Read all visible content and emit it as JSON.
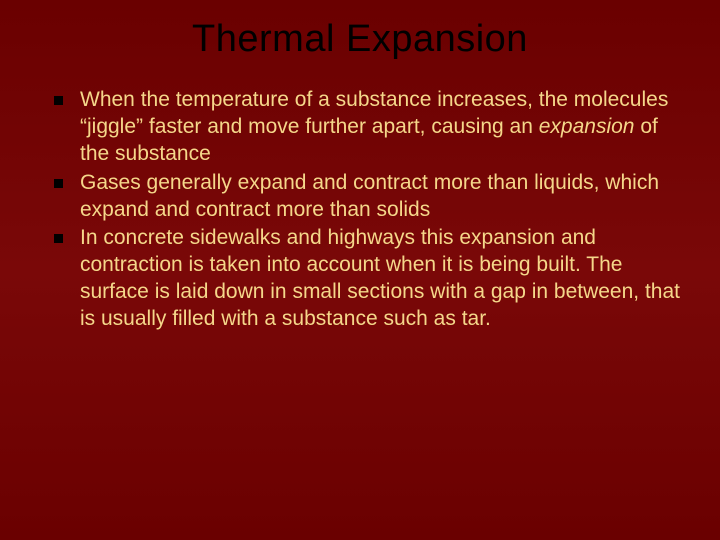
{
  "slide": {
    "background_gradient": [
      "#6a0000",
      "#7a0808",
      "#6a0000"
    ],
    "title": {
      "text": "Thermal Expansion",
      "color": "#000000",
      "fontsize": 38,
      "font_family": "Verdana"
    },
    "body": {
      "text_color": "#f5d78a",
      "fontsize": 21,
      "bullet_marker": {
        "shape": "square",
        "color": "#000000",
        "size": 9
      },
      "items": [
        {
          "segments": [
            {
              "text": "When the temperature of a substance increases, the molecules “jiggle” faster and move further apart, causing an ",
              "italic": false
            },
            {
              "text": "expansion",
              "italic": true
            },
            {
              "text": " of the substance",
              "italic": false
            }
          ]
        },
        {
          "segments": [
            {
              "text": "Gases generally expand and contract more than liquids, which expand and contract more than solids",
              "italic": false
            }
          ]
        },
        {
          "segments": [
            {
              "text": "In concrete sidewalks and highways this expansion and contraction is taken into account when it is being built.  The surface is laid down in small sections with a gap in between, that is usually filled with a substance such as tar.",
              "italic": false
            }
          ]
        }
      ]
    }
  }
}
